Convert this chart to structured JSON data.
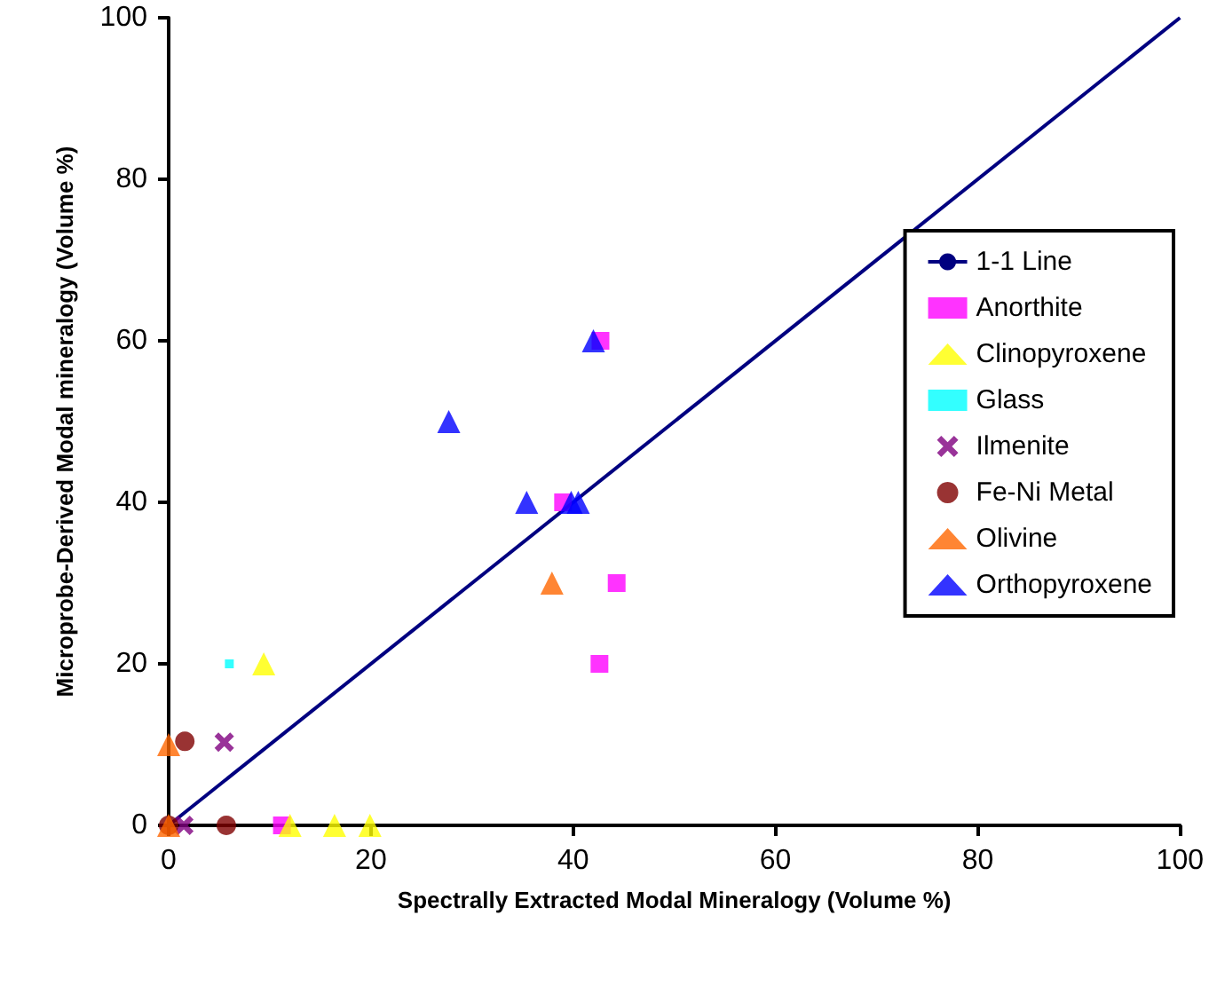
{
  "chart_data": {
    "type": "scatter",
    "xlabel": "Spectrally Extracted Modal Mineralogy (Volume %)",
    "ylabel": "Microprobe-Derived Modal mineralogy (Volume %)",
    "xlim": [
      0,
      100
    ],
    "ylim": [
      0,
      100
    ],
    "xticks": [
      0,
      20,
      40,
      60,
      80,
      100
    ],
    "yticks": [
      0,
      20,
      40,
      60,
      80,
      100
    ],
    "grid": false,
    "legend": "right",
    "series": [
      {
        "name": "1-1 Line",
        "type": "line",
        "color": "#000080",
        "marker": "none",
        "x": [
          0,
          100
        ],
        "values": [
          0,
          100
        ]
      },
      {
        "name": "Anorthite",
        "color": "#ff00ff",
        "marker": "square",
        "x": [
          42.7,
          39,
          44.3,
          42.6,
          11.2
        ],
        "values": [
          60,
          40,
          30,
          20,
          0
        ]
      },
      {
        "name": "Clinopyroxene",
        "color": "#ffff00",
        "marker": "triangle",
        "x": [
          9.4,
          12,
          16.4,
          19.9
        ],
        "values": [
          20,
          0,
          0,
          0
        ]
      },
      {
        "name": "Glass",
        "color": "#00ffff",
        "marker": "square",
        "x": [
          6
        ],
        "values": [
          20
        ]
      },
      {
        "name": "Ilmenite",
        "color": "#800080",
        "marker": "cross",
        "x": [
          5.5,
          1.5
        ],
        "values": [
          10.3,
          0
        ]
      },
      {
        "name": "Fe-Ni Metal",
        "color": "#800000",
        "marker": "circle",
        "x": [
          1.6,
          0,
          5.7
        ],
        "values": [
          10.4,
          0,
          0
        ]
      },
      {
        "name": "Olivine",
        "color": "#ff6600",
        "marker": "triangle",
        "x": [
          0,
          0,
          37.9
        ],
        "values": [
          10,
          0,
          30
        ]
      },
      {
        "name": "Orthopyroxene",
        "color": "#0000ff",
        "marker": "triangle",
        "x": [
          42,
          27.7,
          35.4,
          39.8,
          40.5
        ],
        "values": [
          60,
          50,
          40,
          40,
          40
        ]
      }
    ]
  }
}
